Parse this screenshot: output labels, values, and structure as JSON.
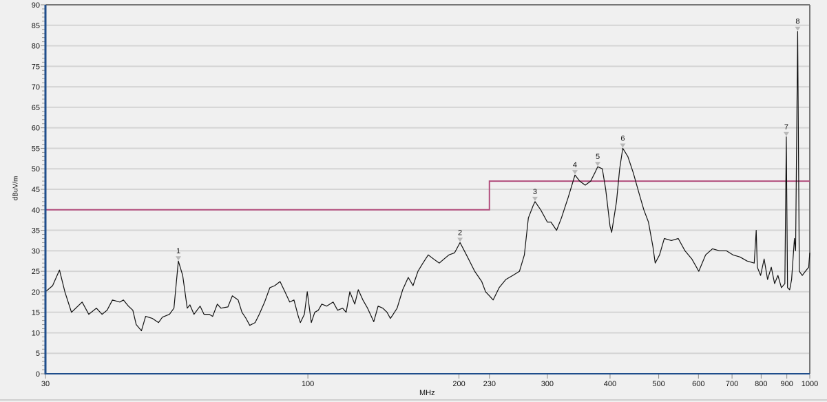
{
  "chart_data": {
    "type": "line",
    "xlabel": "MHz",
    "ylabel": "dBuV/m",
    "x_scale": "log",
    "xlim": [
      30,
      1000
    ],
    "ylim": [
      0,
      90
    ],
    "grid": true,
    "x_ticks": [
      30,
      100,
      200,
      230,
      300,
      400,
      500,
      600,
      700,
      800,
      900,
      1000
    ],
    "y_ticks": [
      0,
      5,
      10,
      15,
      20,
      25,
      30,
      35,
      40,
      45,
      50,
      55,
      60,
      65,
      70,
      75,
      80,
      85,
      90
    ],
    "colors": {
      "trace": "#111111",
      "limit": "#b24d7c",
      "axis": "#1f4e8c",
      "grid": "#d4d4d4",
      "marker": "#b8b8b8"
    },
    "limit_line": [
      [
        30,
        40
      ],
      [
        230,
        40
      ],
      [
        230,
        47
      ],
      [
        1000,
        47
      ]
    ],
    "trace": [
      [
        30,
        20
      ],
      [
        31,
        21.5
      ],
      [
        32,
        25.3
      ],
      [
        32.8,
        20
      ],
      [
        33.8,
        15
      ],
      [
        35.5,
        17.5
      ],
      [
        36.6,
        14.5
      ],
      [
        37.9,
        16
      ],
      [
        38.9,
        14.5
      ],
      [
        39.8,
        15.5
      ],
      [
        40.8,
        18
      ],
      [
        42.2,
        17.5
      ],
      [
        42.9,
        18
      ],
      [
        43.9,
        16.5
      ],
      [
        44.8,
        15.5
      ],
      [
        45.5,
        12
      ],
      [
        46.6,
        10.5
      ],
      [
        47.5,
        14
      ],
      [
        49,
        13.5
      ],
      [
        50.4,
        12.5
      ],
      [
        51.3,
        13.8
      ],
      [
        53,
        14.5
      ],
      [
        54.1,
        16
      ],
      [
        55.2,
        27.5
      ],
      [
        56.3,
        24
      ],
      [
        57.5,
        16
      ],
      [
        58.2,
        16.8
      ],
      [
        59.3,
        14.5
      ],
      [
        61,
        16.5
      ],
      [
        62.1,
        14.5
      ],
      [
        63.6,
        14.5
      ],
      [
        64.6,
        14
      ],
      [
        66,
        17
      ],
      [
        67.1,
        16
      ],
      [
        69.3,
        16.3
      ],
      [
        70.7,
        19
      ],
      [
        72.6,
        18
      ],
      [
        73.9,
        15
      ],
      [
        75.3,
        13.5
      ],
      [
        76.6,
        11.8
      ],
      [
        78.5,
        12.5
      ],
      [
        80,
        14.5
      ],
      [
        82,
        17.5
      ],
      [
        84,
        21
      ],
      [
        85.9,
        21.5
      ],
      [
        88,
        22.5
      ],
      [
        90,
        20
      ],
      [
        92,
        17.5
      ],
      [
        93.8,
        18
      ],
      [
        95.7,
        14
      ],
      [
        96.6,
        12.5
      ],
      [
        98.4,
        14.5
      ],
      [
        99.7,
        20
      ],
      [
        101.6,
        12.5
      ],
      [
        103.2,
        15
      ],
      [
        104.9,
        15.5
      ],
      [
        106.6,
        17
      ],
      [
        109,
        16.5
      ],
      [
        112.3,
        17.5
      ],
      [
        114.6,
        15.5
      ],
      [
        117.3,
        16
      ],
      [
        119.2,
        15
      ],
      [
        121.2,
        20
      ],
      [
        124,
        17
      ],
      [
        126,
        20.5
      ],
      [
        128.7,
        18
      ],
      [
        131.5,
        16
      ],
      [
        135.3,
        12.7
      ],
      [
        138,
        16.5
      ],
      [
        141,
        16
      ],
      [
        143.8,
        15
      ],
      [
        146,
        13.5
      ],
      [
        147.9,
        14.5
      ],
      [
        150.6,
        16
      ],
      [
        154.5,
        20.5
      ],
      [
        158.5,
        23.5
      ],
      [
        162,
        21.5
      ],
      [
        165.7,
        25
      ],
      [
        169.5,
        27
      ],
      [
        173.7,
        29
      ],
      [
        178,
        28
      ],
      [
        182.7,
        27
      ],
      [
        186.8,
        28
      ],
      [
        191,
        29
      ],
      [
        196,
        29.5
      ],
      [
        199,
        31
      ],
      [
        201,
        32
      ],
      [
        205,
        30
      ],
      [
        208,
        28.5
      ],
      [
        215,
        25
      ],
      [
        222,
        22.5
      ],
      [
        226,
        20
      ],
      [
        230,
        19
      ],
      [
        234,
        18
      ],
      [
        240.5,
        21
      ],
      [
        248,
        23
      ],
      [
        256,
        24
      ],
      [
        264,
        25
      ],
      [
        270,
        29
      ],
      [
        275,
        38
      ],
      [
        281,
        41
      ],
      [
        283.5,
        42
      ],
      [
        291,
        40
      ],
      [
        300,
        37
      ],
      [
        305,
        37
      ],
      [
        313,
        35
      ],
      [
        320,
        38
      ],
      [
        330,
        43
      ],
      [
        340.5,
        48.5
      ],
      [
        348,
        47
      ],
      [
        357,
        46
      ],
      [
        366,
        47
      ],
      [
        373,
        49
      ],
      [
        378,
        50.5
      ],
      [
        386,
        50
      ],
      [
        392,
        45
      ],
      [
        400,
        36
      ],
      [
        403,
        34.5
      ],
      [
        412,
        42
      ],
      [
        418,
        50
      ],
      [
        424,
        55
      ],
      [
        434,
        53
      ],
      [
        445,
        49
      ],
      [
        457,
        44
      ],
      [
        467,
        40
      ],
      [
        477,
        37
      ],
      [
        487,
        31
      ],
      [
        492,
        27
      ],
      [
        502,
        29
      ],
      [
        513,
        33
      ],
      [
        530,
        32.5
      ],
      [
        547,
        33
      ],
      [
        564,
        30
      ],
      [
        582,
        28
      ],
      [
        601,
        25
      ],
      [
        620,
        29
      ],
      [
        640,
        30.5
      ],
      [
        661,
        30
      ],
      [
        682,
        30
      ],
      [
        703,
        29
      ],
      [
        726,
        28.5
      ],
      [
        750,
        27.5
      ],
      [
        775,
        27
      ],
      [
        782,
        35
      ],
      [
        786,
        26
      ],
      [
        798,
        24
      ],
      [
        811,
        28
      ],
      [
        824,
        23
      ],
      [
        838,
        26
      ],
      [
        851,
        22
      ],
      [
        864,
        24
      ],
      [
        878,
        21
      ],
      [
        892,
        22
      ],
      [
        898,
        57.8
      ],
      [
        903,
        21
      ],
      [
        912,
        20.5
      ],
      [
        920,
        23
      ],
      [
        932,
        33
      ],
      [
        937,
        30
      ],
      [
        946,
        83.5
      ],
      [
        953,
        25
      ],
      [
        966,
        24
      ],
      [
        980,
        25
      ],
      [
        995,
        26
      ],
      [
        1000,
        29.5
      ]
    ],
    "markers": [
      {
        "label": "1",
        "x": 55.2,
        "y": 27.5
      },
      {
        "label": "2",
        "x": 201,
        "y": 32
      },
      {
        "label": "3",
        "x": 283.5,
        "y": 42
      },
      {
        "label": "4",
        "x": 340.5,
        "y": 48.5
      },
      {
        "label": "5",
        "x": 378,
        "y": 50.5
      },
      {
        "label": "6",
        "x": 424,
        "y": 55
      },
      {
        "label": "7",
        "x": 898,
        "y": 57.8
      },
      {
        "label": "8",
        "x": 946,
        "y": 83.5
      }
    ]
  }
}
